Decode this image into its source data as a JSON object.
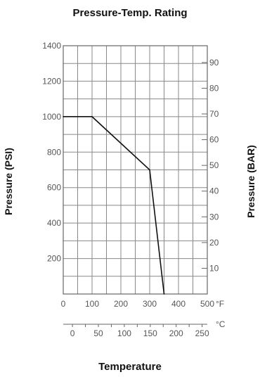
{
  "chart_data": {
    "type": "line",
    "title": "Pressure-Temp. Rating",
    "xlabel": "Temperature",
    "ylabel_left": "Pressure (PSI)",
    "ylabel_right": "Pressure (BAR)",
    "series": [
      {
        "x": [
          0,
          100,
          300,
          350
        ],
        "y": [
          1000,
          1000,
          700,
          0
        ]
      }
    ],
    "x_primary": {
      "unit": "°F",
      "ticks": [
        0,
        100,
        200,
        300,
        400,
        500
      ],
      "range": [
        0,
        500
      ]
    },
    "x_secondary": {
      "unit": "°C",
      "ticks": [
        0,
        50,
        100,
        150,
        200,
        250
      ]
    },
    "y_primary": {
      "ticks": [
        200,
        400,
        600,
        800,
        1000,
        1200,
        1400
      ],
      "range": [
        0,
        1400
      ]
    },
    "y_secondary": {
      "ticks": [
        10,
        20,
        30,
        40,
        50,
        60,
        70,
        80,
        90
      ]
    },
    "grid": true
  }
}
